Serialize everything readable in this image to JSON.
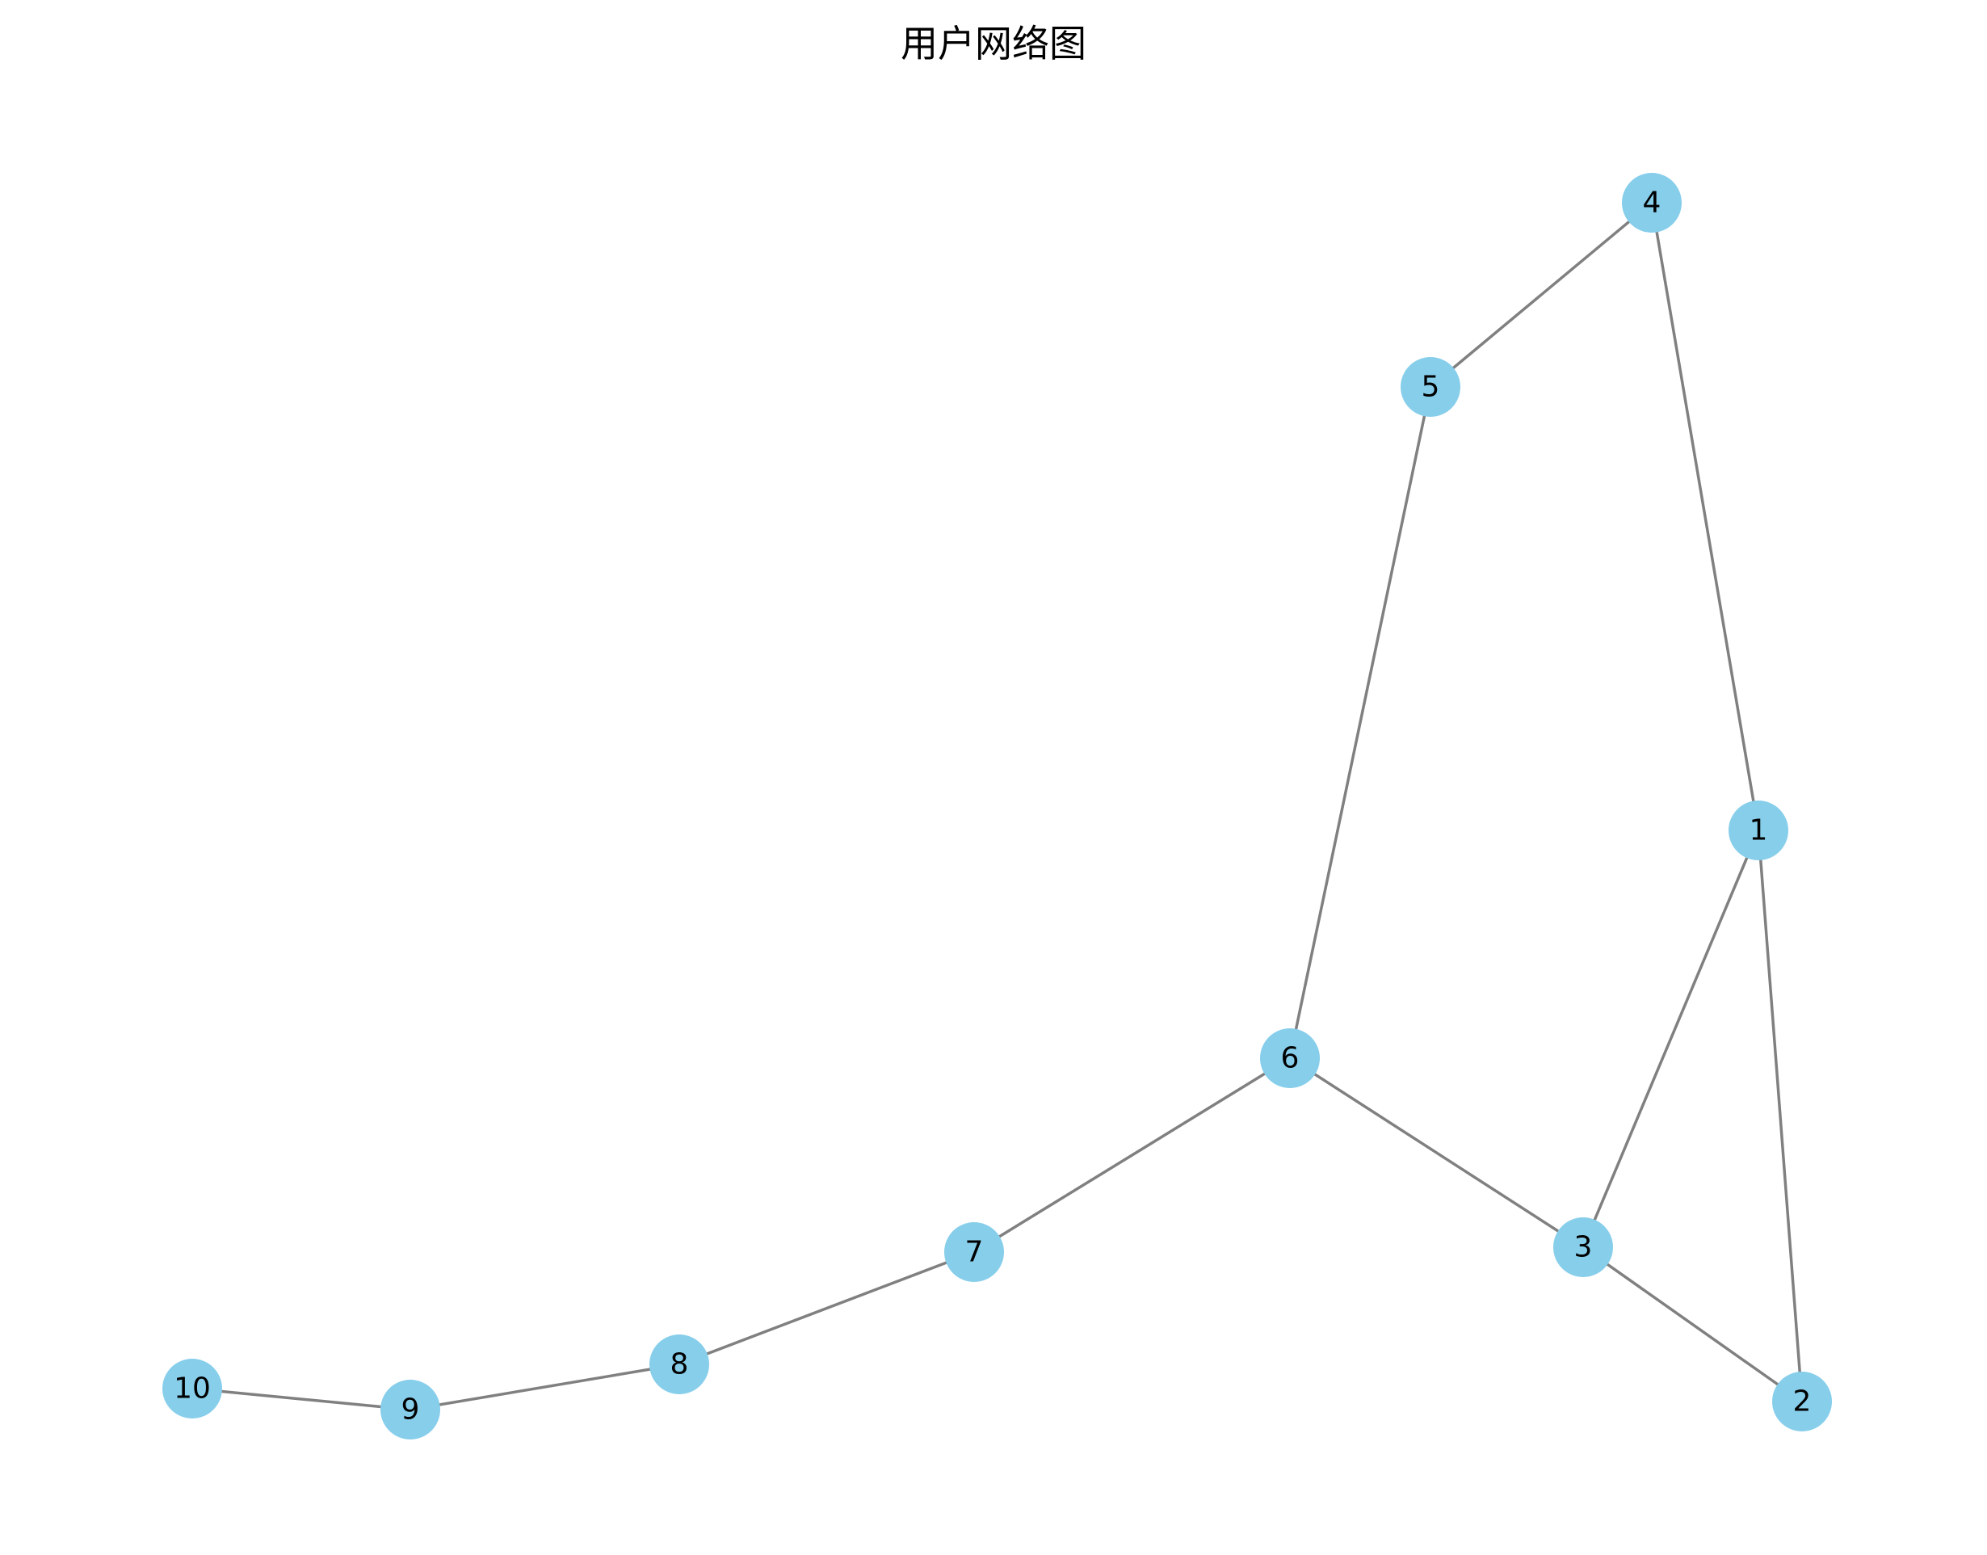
{
  "title": "用户网络图",
  "colors": {
    "node_fill": "#87CEEB",
    "edge_stroke": "#808080",
    "label": "#000000",
    "background": "#ffffff"
  },
  "nodes": [
    {
      "id": "1",
      "label": "1"
    },
    {
      "id": "2",
      "label": "2"
    },
    {
      "id": "3",
      "label": "3"
    },
    {
      "id": "4",
      "label": "4"
    },
    {
      "id": "5",
      "label": "5"
    },
    {
      "id": "6",
      "label": "6"
    },
    {
      "id": "7",
      "label": "7"
    },
    {
      "id": "8",
      "label": "8"
    },
    {
      "id": "9",
      "label": "9"
    },
    {
      "id": "10",
      "label": "10"
    }
  ],
  "edges": [
    {
      "source": "1",
      "target": "2"
    },
    {
      "source": "1",
      "target": "3"
    },
    {
      "source": "1",
      "target": "4"
    },
    {
      "source": "2",
      "target": "3"
    },
    {
      "source": "3",
      "target": "6"
    },
    {
      "source": "4",
      "target": "5"
    },
    {
      "source": "5",
      "target": "6"
    },
    {
      "source": "6",
      "target": "7"
    },
    {
      "source": "7",
      "target": "8"
    },
    {
      "source": "8",
      "target": "9"
    },
    {
      "source": "9",
      "target": "10"
    }
  ]
}
